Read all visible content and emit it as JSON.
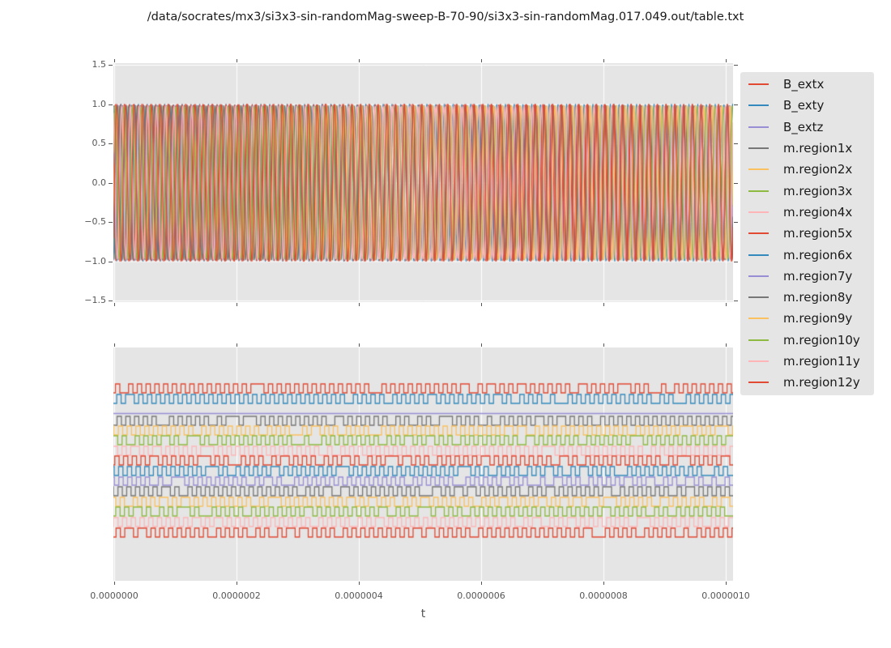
{
  "title": "/data/socrates/mx3/si3x3-sin-randomMag-sweep-B-70-90/si3x3-sin-randomMag.017.049.out/table.txt",
  "style": {
    "axes_background": "#E5E5E5",
    "grid_color": "#FFFFFF",
    "tick_text_color": "#555555",
    "text_color": "#1A1A1A",
    "figure_background": "#FFFFFF",
    "palette": {
      "red": "#E24A33",
      "blue": "#348ABD",
      "purple": "#988ED5",
      "gray": "#777777",
      "orange": "#FBC15E",
      "green": "#8EBA42",
      "pink": "#FFB5B8"
    }
  },
  "axes": {
    "x": {
      "label": "t",
      "ticks": [
        "0.0000000",
        "0.0000002",
        "0.0000004",
        "0.0000006",
        "0.0000008",
        "0.0000010"
      ]
    },
    "y_top": {
      "ticks": [
        "1.5",
        "1.0",
        "0.5",
        "0.0",
        "−0.5",
        "−1.0",
        "−1.5"
      ]
    },
    "y_bottom": {
      "ticks": []
    }
  },
  "legend": {
    "entries": [
      {
        "label": "B_extx",
        "color": "#E24A33"
      },
      {
        "label": "B_exty",
        "color": "#348ABD"
      },
      {
        "label": "B_extz",
        "color": "#988ED5"
      },
      {
        "label": "m.region1x",
        "color": "#777777"
      },
      {
        "label": "m.region2x",
        "color": "#FBC15E"
      },
      {
        "label": "m.region3x",
        "color": "#8EBA42"
      },
      {
        "label": "m.region4x",
        "color": "#FFB5B8"
      },
      {
        "label": "m.region5x",
        "color": "#E24A33"
      },
      {
        "label": "m.region6x",
        "color": "#348ABD"
      },
      {
        "label": "m.region7y",
        "color": "#988ED5"
      },
      {
        "label": "m.region8y",
        "color": "#777777"
      },
      {
        "label": "m.region9y",
        "color": "#FBC15E"
      },
      {
        "label": "m.region10y",
        "color": "#8EBA42"
      },
      {
        "label": "m.region11y",
        "color": "#FFB5B8"
      },
      {
        "label": "m.region12y",
        "color": "#E24A33"
      }
    ]
  },
  "chart_data": [
    {
      "type": "line",
      "plot": "top",
      "waveform": "sine",
      "xlim_us": [
        0.0,
        1.013
      ],
      "ylim": [
        -1.5,
        1.5
      ],
      "x_ticks_us": [
        0.0,
        0.2,
        0.4,
        0.6,
        0.8,
        1.0
      ],
      "grid": "both",
      "note": "~70 oscillation cycles across 1 microsecond; amplitude ~1.0; all 15 series overlap densely",
      "series": [
        {
          "name": "B_extx",
          "color": "#E24A33",
          "amp": 1.0,
          "freq_mhz": 70.0,
          "phase": 0.0
        },
        {
          "name": "B_exty",
          "color": "#348ABD",
          "amp": 1.0,
          "freq_mhz": 70.0,
          "phase": 2.3
        },
        {
          "name": "B_extz",
          "color": "#988ED5",
          "amp": 0.98,
          "freq_mhz": 70.0,
          "phase": 4.4
        },
        {
          "name": "m.region1x",
          "color": "#777777",
          "amp": 0.985,
          "freq_mhz": 69.6,
          "phase": 1.1
        },
        {
          "name": "m.region2x",
          "color": "#FBC15E",
          "amp": 0.975,
          "freq_mhz": 70.4,
          "phase": 3.6
        },
        {
          "name": "m.region3x",
          "color": "#8EBA42",
          "amp": 0.98,
          "freq_mhz": 69.8,
          "phase": 5.2
        },
        {
          "name": "m.region4x",
          "color": "#FFB5B8",
          "amp": 0.97,
          "freq_mhz": 70.6,
          "phase": 0.8
        },
        {
          "name": "m.region5x",
          "color": "#E24A33",
          "amp": 0.995,
          "freq_mhz": 69.5,
          "phase": 2.9
        },
        {
          "name": "m.region6x",
          "color": "#348ABD",
          "amp": 0.99,
          "freq_mhz": 70.2,
          "phase": 4.9
        },
        {
          "name": "m.region7y",
          "color": "#988ED5",
          "amp": 0.975,
          "freq_mhz": 69.9,
          "phase": 1.7
        },
        {
          "name": "m.region8y",
          "color": "#777777",
          "amp": 0.98,
          "freq_mhz": 70.5,
          "phase": 3.1
        },
        {
          "name": "m.region9y",
          "color": "#FBC15E",
          "amp": 0.985,
          "freq_mhz": 69.7,
          "phase": 5.8
        },
        {
          "name": "m.region10y",
          "color": "#8EBA42",
          "amp": 0.97,
          "freq_mhz": 70.3,
          "phase": 0.4
        },
        {
          "name": "m.region11y",
          "color": "#FFB5B8",
          "amp": 0.975,
          "freq_mhz": 69.9,
          "phase": 2.0
        },
        {
          "name": "m.region12y",
          "color": "#E24A33",
          "amp": 1.0,
          "freq_mhz": 70.1,
          "phase": 5.5
        }
      ]
    },
    {
      "type": "line",
      "plot": "bottom",
      "waveform": "square-telegraph",
      "grid": "x-only",
      "note": "15 stacked two-level telegraph/square traces, ~70 cycles across axis; y positions are px from plot top (no y scale shown)",
      "series": [
        {
          "name": "B_extx",
          "color": "#E24A33",
          "shape": "square",
          "y_high": 45,
          "y_low": 56,
          "freq_mhz": 70.0,
          "seed": 11
        },
        {
          "name": "B_exty",
          "color": "#348ABD",
          "shape": "square",
          "y_high": 58,
          "y_low": 69,
          "freq_mhz": 69.8,
          "seed": 22
        },
        {
          "name": "B_extz",
          "color": "#988ED5",
          "shape": "flat",
          "y_high": 81,
          "y_low": 81,
          "freq_mhz": 70.0,
          "seed": 33
        },
        {
          "name": "m.region1x",
          "color": "#777777",
          "shape": "square",
          "y_high": 85,
          "y_low": 96,
          "freq_mhz": 70.2,
          "seed": 44
        },
        {
          "name": "m.region2x",
          "color": "#FBC15E",
          "shape": "square",
          "y_high": 97,
          "y_low": 108,
          "freq_mhz": 69.7,
          "seed": 55
        },
        {
          "name": "m.region3x",
          "color": "#8EBA42",
          "shape": "square",
          "y_high": 109,
          "y_low": 120,
          "freq_mhz": 70.4,
          "seed": 66
        },
        {
          "name": "m.region4x",
          "color": "#FFB5B8",
          "shape": "square",
          "y_high": 122,
          "y_low": 133,
          "freq_mhz": 69.9,
          "seed": 77
        },
        {
          "name": "m.region5x",
          "color": "#E24A33",
          "shape": "square",
          "y_high": 134,
          "y_low": 145,
          "freq_mhz": 70.1,
          "seed": 88
        },
        {
          "name": "m.region6x",
          "color": "#348ABD",
          "shape": "square",
          "y_high": 147,
          "y_low": 158,
          "freq_mhz": 70.3,
          "seed": 99
        },
        {
          "name": "m.region7y",
          "color": "#988ED5",
          "shape": "square",
          "y_high": 160,
          "y_low": 170,
          "freq_mhz": 69.6,
          "seed": 110
        },
        {
          "name": "m.region8y",
          "color": "#777777",
          "shape": "square",
          "y_high": 172,
          "y_low": 183,
          "freq_mhz": 70.0,
          "seed": 121
        },
        {
          "name": "m.region9y",
          "color": "#FBC15E",
          "shape": "square",
          "y_high": 185,
          "y_low": 196,
          "freq_mhz": 70.2,
          "seed": 132
        },
        {
          "name": "m.region10y",
          "color": "#8EBA42",
          "shape": "square",
          "y_high": 197,
          "y_low": 208,
          "freq_mhz": 69.8,
          "seed": 143
        },
        {
          "name": "m.region11y",
          "color": "#FFB5B8",
          "shape": "square",
          "y_high": 210,
          "y_low": 221,
          "freq_mhz": 70.1,
          "seed": 154
        },
        {
          "name": "m.region12y",
          "color": "#E24A33",
          "shape": "square",
          "y_high": 223,
          "y_low": 234,
          "freq_mhz": 70.0,
          "seed": 165
        }
      ]
    }
  ]
}
